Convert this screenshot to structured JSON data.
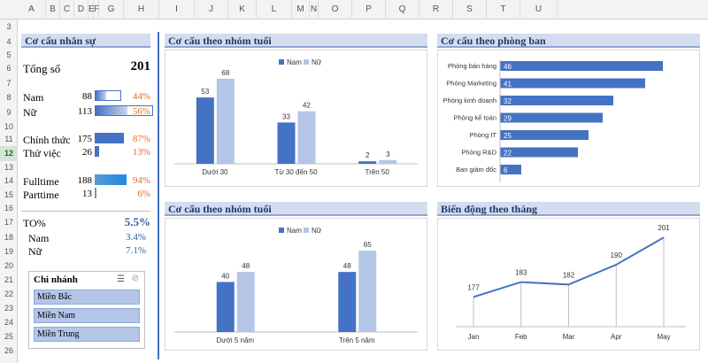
{
  "columns": [
    "A",
    "B",
    "C",
    "D",
    "E",
    "F",
    "G",
    "H",
    "I",
    "J",
    "K",
    "L",
    "M",
    "N",
    "O",
    "P",
    "Q",
    "R",
    "S",
    "T",
    "U"
  ],
  "rows": [
    "3",
    "4",
    "5",
    "6",
    "7",
    "8",
    "9",
    "10",
    "11",
    "12",
    "13",
    "14",
    "15",
    "16",
    "17",
    "18",
    "19",
    "20",
    "21",
    "22",
    "23",
    "24",
    "25",
    "26"
  ],
  "selected_row": "12",
  "hr": {
    "title": "Cơ cấu nhân sự",
    "total_label": "Tổng số",
    "total_value": "201",
    "male_label": "Nam",
    "male_value": "88",
    "male_pct": "44%",
    "male_fraction": 0.44,
    "female_label": "Nữ",
    "female_value": "113",
    "female_pct": "56%",
    "female_fraction": 0.56,
    "official_label": "Chính thức",
    "official_value": "175",
    "official_pct": "87%",
    "official_fraction": 0.87,
    "probation_label": "Thử việc",
    "probation_value": "26",
    "probation_pct": "13%",
    "probation_fraction": 0.13,
    "fulltime_label": "Fulltime",
    "fulltime_value": "188",
    "fulltime_pct": "94%",
    "fulltime_fraction": 0.94,
    "parttime_label": "Parttime",
    "parttime_value": "13",
    "parttime_pct": "6%",
    "parttime_fraction": 0.06,
    "to_label": "TO%",
    "to_value": "5.5%",
    "to_male_label": "Nam",
    "to_male_value": "3.4%",
    "to_female_label": "Nữ",
    "to_female_value": "7.1%"
  },
  "slicer": {
    "title": "Chi nhánh",
    "items": [
      "Miền Bắc",
      "Miền Nam",
      "Miền Trung"
    ]
  },
  "colors": {
    "male": "#4472c4",
    "female": "#b4c6e7",
    "line": "#4472c4",
    "header_bg": "#d6dcef"
  },
  "chart_data": [
    {
      "type": "bar",
      "title": "Cơ cấu theo nhóm tuổi",
      "categories": [
        "Dưới 30",
        "Từ 30 đến 50",
        "Trên 50"
      ],
      "series": [
        {
          "name": "Nam",
          "values": [
            53,
            33,
            2
          ]
        },
        {
          "name": "Nữ",
          "values": [
            68,
            42,
            3
          ]
        }
      ],
      "ylim": [
        0,
        75
      ]
    },
    {
      "type": "bar",
      "title": "Cơ cấu theo phòng ban",
      "orientation": "horizontal",
      "categories": [
        "Phòng bán hàng",
        "Phòng Marketing",
        "Phòng kinh doanh",
        "Phòng kế toán",
        "Phòng IT",
        "Phòng R&D",
        "Ban giám đốc"
      ],
      "values": [
        46,
        41,
        32,
        29,
        25,
        22,
        6
      ],
      "xlim": [
        0,
        50
      ]
    },
    {
      "type": "bar",
      "title": "Cơ cấu theo nhóm tuổi",
      "categories": [
        "Dưới 5 năm",
        "Trên 5 năm"
      ],
      "series": [
        {
          "name": "Nam",
          "values": [
            40,
            48
          ]
        },
        {
          "name": "Nữ",
          "values": [
            48,
            65
          ]
        }
      ],
      "ylim": [
        0,
        75
      ]
    },
    {
      "type": "line",
      "title": "Biến động theo tháng",
      "categories": [
        "Jan",
        "Feb",
        "Mar",
        "Apr",
        "May"
      ],
      "values": [
        177,
        183,
        182,
        190,
        201
      ],
      "ylim": [
        165,
        205
      ]
    }
  ]
}
